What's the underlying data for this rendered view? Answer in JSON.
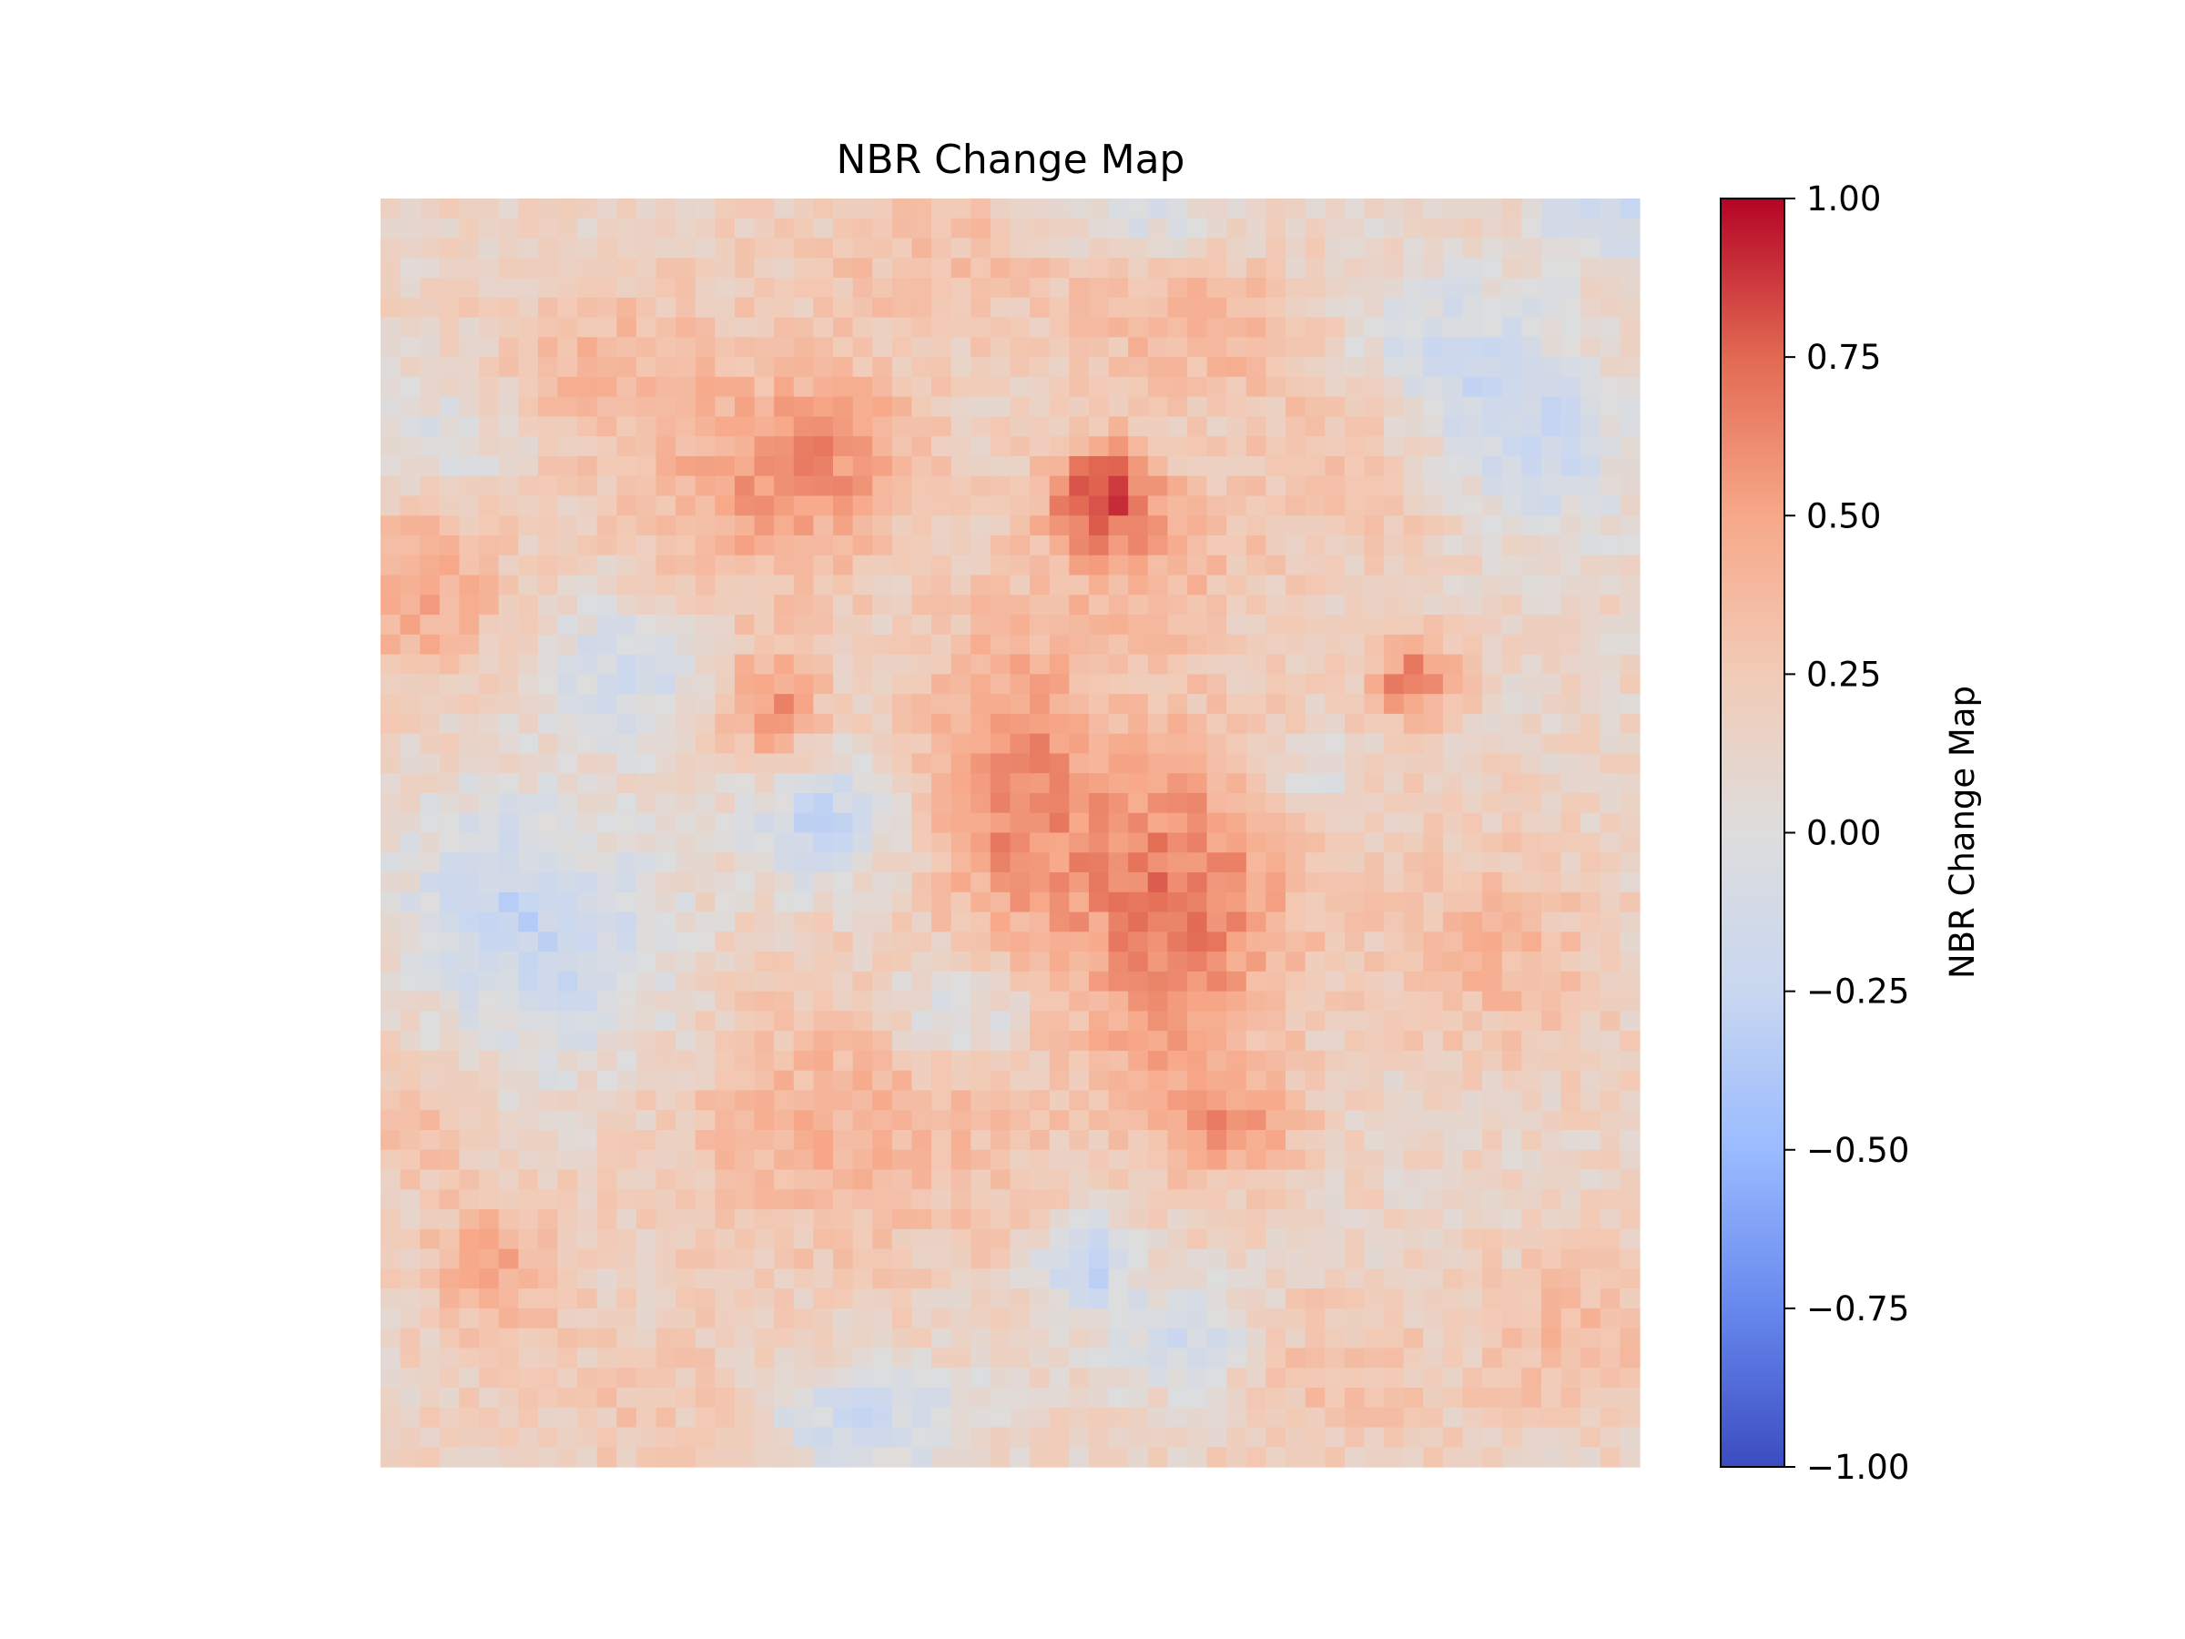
{
  "chart_data": {
    "type": "heatmap",
    "title": "NBR Change Map",
    "colorbar": {
      "label": "NBR Change Map",
      "range": [
        -1.0,
        1.0
      ],
      "ticks": [
        "1.00",
        "0.75",
        "0.50",
        "0.25",
        "0.00",
        "−0.25",
        "−0.50",
        "−0.75",
        "−1.00"
      ],
      "tick_values": [
        1.0,
        0.75,
        0.5,
        0.25,
        0.0,
        -0.25,
        -0.5,
        -0.75,
        -1.0
      ],
      "colormap": "coolwarm",
      "color_stops": [
        "#3b4cc0",
        "#6788ee",
        "#9abbff",
        "#c9d7f0",
        "#dddddd",
        "#f2cbb7",
        "#f7a889",
        "#e26952",
        "#b40426"
      ]
    },
    "grid_size": [
      64,
      64
    ],
    "axes_visible": false,
    "value_range_observed": [
      -0.5,
      0.85
    ],
    "regions": [
      {
        "x": 0.03,
        "y": 0.3,
        "sx": 0.05,
        "sy": 0.06,
        "v": 0.55
      },
      {
        "x": 0.18,
        "y": 0.13,
        "sx": 0.07,
        "sy": 0.05,
        "v": 0.4
      },
      {
        "x": 0.3,
        "y": 0.24,
        "sx": 0.08,
        "sy": 0.06,
        "v": 0.5
      },
      {
        "x": 0.36,
        "y": 0.19,
        "sx": 0.05,
        "sy": 0.04,
        "v": 0.45
      },
      {
        "x": 0.45,
        "y": 0.05,
        "sx": 0.1,
        "sy": 0.05,
        "v": 0.35
      },
      {
        "x": 0.57,
        "y": 0.23,
        "sx": 0.03,
        "sy": 0.03,
        "v": 0.8
      },
      {
        "x": 0.61,
        "y": 0.28,
        "sx": 0.06,
        "sy": 0.05,
        "v": 0.45
      },
      {
        "x": 0.65,
        "y": 0.1,
        "sx": 0.06,
        "sy": 0.04,
        "v": 0.45
      },
      {
        "x": 0.78,
        "y": 0.19,
        "sx": 0.06,
        "sy": 0.06,
        "v": 0.4
      },
      {
        "x": 0.82,
        "y": 0.38,
        "sx": 0.025,
        "sy": 0.025,
        "v": 0.7
      },
      {
        "x": 0.31,
        "y": 0.4,
        "sx": 0.03,
        "sy": 0.035,
        "v": 0.65
      },
      {
        "x": 0.5,
        "y": 0.46,
        "sx": 0.05,
        "sy": 0.09,
        "v": 0.65
      },
      {
        "x": 0.63,
        "y": 0.58,
        "sx": 0.06,
        "sy": 0.1,
        "v": 0.65
      },
      {
        "x": 0.37,
        "y": 0.73,
        "sx": 0.11,
        "sy": 0.08,
        "v": 0.45
      },
      {
        "x": 0.68,
        "y": 0.5,
        "sx": 0.1,
        "sy": 0.08,
        "v": 0.3
      },
      {
        "x": 0.89,
        "y": 0.6,
        "sx": 0.06,
        "sy": 0.06,
        "v": 0.4
      },
      {
        "x": 0.09,
        "y": 0.84,
        "sx": 0.04,
        "sy": 0.04,
        "v": 0.5
      },
      {
        "x": 0.02,
        "y": 0.73,
        "sx": 0.03,
        "sy": 0.03,
        "v": 0.45
      },
      {
        "x": 0.22,
        "y": 0.95,
        "sx": 0.1,
        "sy": 0.04,
        "v": 0.3
      },
      {
        "x": 0.75,
        "y": 0.93,
        "sx": 0.07,
        "sy": 0.05,
        "v": 0.35
      },
      {
        "x": 0.95,
        "y": 0.9,
        "sx": 0.05,
        "sy": 0.05,
        "v": 0.4
      },
      {
        "x": 0.68,
        "y": 0.73,
        "sx": 0.04,
        "sy": 0.03,
        "v": 0.5
      },
      {
        "x": 0.35,
        "y": 0.49,
        "sx": 0.04,
        "sy": 0.035,
        "v": -0.3
      },
      {
        "x": 0.2,
        "y": 0.37,
        "sx": 0.05,
        "sy": 0.04,
        "v": -0.2
      },
      {
        "x": 0.46,
        "y": 0.64,
        "sx": 0.04,
        "sy": 0.03,
        "v": -0.25
      },
      {
        "x": 0.56,
        "y": 0.84,
        "sx": 0.025,
        "sy": 0.025,
        "v": -0.4
      },
      {
        "x": 0.64,
        "y": 0.9,
        "sx": 0.04,
        "sy": 0.03,
        "v": -0.25
      },
      {
        "x": 0.84,
        "y": 0.13,
        "sx": 0.06,
        "sy": 0.05,
        "v": -0.25
      },
      {
        "x": 0.92,
        "y": 0.2,
        "sx": 0.05,
        "sy": 0.05,
        "v": -0.2
      },
      {
        "x": 0.16,
        "y": 0.6,
        "sx": 0.06,
        "sy": 0.07,
        "v": -0.2
      },
      {
        "x": 0.08,
        "y": 0.55,
        "sx": 0.05,
        "sy": 0.06,
        "v": -0.15
      },
      {
        "x": 0.38,
        "y": 0.96,
        "sx": 0.06,
        "sy": 0.03,
        "v": -0.25
      },
      {
        "x": 0.05,
        "y": 0.2,
        "sx": 0.04,
        "sy": 0.04,
        "v": -0.15
      },
      {
        "x": 0.6,
        "y": 0.01,
        "sx": 0.05,
        "sy": 0.03,
        "v": -0.15
      },
      {
        "x": 0.98,
        "y": 0.01,
        "sx": 0.04,
        "sy": 0.03,
        "v": -0.2
      },
      {
        "x": 0.74,
        "y": 0.46,
        "sx": 0.03,
        "sy": 0.03,
        "v": -0.15
      }
    ]
  }
}
